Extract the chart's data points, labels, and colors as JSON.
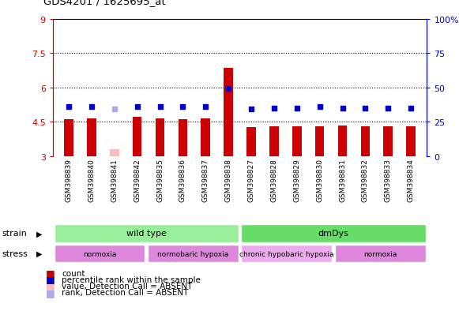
{
  "title": "GDS4201 / 1625695_at",
  "samples": [
    "GSM398839",
    "GSM398840",
    "GSM398841",
    "GSM398842",
    "GSM398835",
    "GSM398836",
    "GSM398837",
    "GSM398838",
    "GSM398827",
    "GSM398828",
    "GSM398829",
    "GSM398830",
    "GSM398831",
    "GSM398832",
    "GSM398833",
    "GSM398834"
  ],
  "bar_values": [
    4.6,
    4.65,
    3.3,
    4.7,
    4.65,
    4.6,
    4.65,
    6.85,
    4.25,
    4.3,
    4.3,
    4.3,
    4.35,
    4.3,
    4.3,
    4.3
  ],
  "bar_colors": [
    "#cc0000",
    "#cc0000",
    "#ffbbbb",
    "#cc0000",
    "#cc0000",
    "#cc0000",
    "#cc0000",
    "#cc0000",
    "#cc0000",
    "#cc0000",
    "#cc0000",
    "#cc0000",
    "#cc0000",
    "#cc0000",
    "#cc0000",
    "#cc0000"
  ],
  "rank_values": [
    5.15,
    5.15,
    5.05,
    5.15,
    5.15,
    5.15,
    5.15,
    5.95,
    5.05,
    5.1,
    5.1,
    5.15,
    5.1,
    5.1,
    5.1,
    5.1
  ],
  "rank_colors": [
    "#0000cc",
    "#0000cc",
    "#aaaaee",
    "#0000cc",
    "#0000cc",
    "#0000cc",
    "#0000cc",
    "#0000cc",
    "#0000cc",
    "#0000cc",
    "#0000cc",
    "#0000cc",
    "#0000cc",
    "#0000cc",
    "#0000cc",
    "#0000cc"
  ],
  "ymin": 3.0,
  "ymax": 9.0,
  "yticks": [
    3,
    4.5,
    6,
    7.5,
    9
  ],
  "ytick_labels": [
    "3",
    "4.5",
    "6",
    "7.5",
    "9"
  ],
  "y2ticks": [
    0,
    25,
    50,
    75,
    100
  ],
  "y2tick_labels": [
    "0",
    "25",
    "50",
    "75",
    "100%"
  ],
  "dotted_lines": [
    4.5,
    6.0,
    7.5
  ],
  "strain_groups": [
    {
      "label": "wild type",
      "start": 0,
      "end": 8,
      "color": "#99ee99"
    },
    {
      "label": "dmDys",
      "start": 8,
      "end": 16,
      "color": "#66dd66"
    }
  ],
  "stress_groups": [
    {
      "label": "normoxia",
      "start": 0,
      "end": 4,
      "color": "#dd88dd"
    },
    {
      "label": "normobaric hypoxia",
      "start": 4,
      "end": 8,
      "color": "#dd88dd"
    },
    {
      "label": "chronic hypobaric hypoxia",
      "start": 8,
      "end": 12,
      "color": "#eeaaee"
    },
    {
      "label": "normoxia",
      "start": 12,
      "end": 16,
      "color": "#dd88dd"
    }
  ],
  "legend_items": [
    {
      "label": "count",
      "color": "#cc0000"
    },
    {
      "label": "percentile rank within the sample",
      "color": "#0000cc"
    },
    {
      "label": "value, Detection Call = ABSENT",
      "color": "#ffbbbb"
    },
    {
      "label": "rank, Detection Call = ABSENT",
      "color": "#aaaaee"
    }
  ],
  "bar_width": 0.4,
  "bg_color": "#ffffff",
  "axis_color_left": "#cc0000",
  "axis_color_right": "#0000cc"
}
